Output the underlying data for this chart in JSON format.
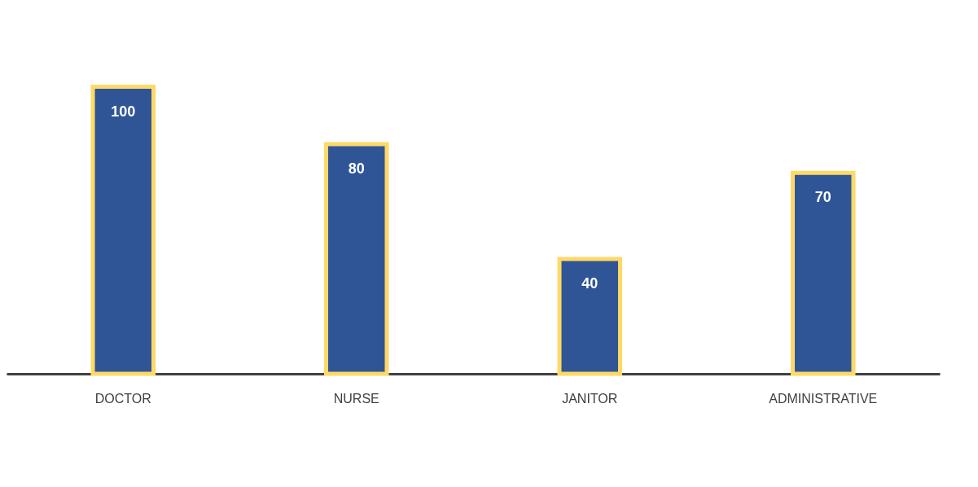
{
  "chart_data": {
    "type": "bar",
    "categories": [
      "DOCTOR",
      "NURSE",
      "JANITOR",
      "ADMINISTRATIVE"
    ],
    "values": [
      100,
      80,
      40,
      70
    ],
    "color": "#2f5597",
    "data_labels": true,
    "grid": false
  }
}
